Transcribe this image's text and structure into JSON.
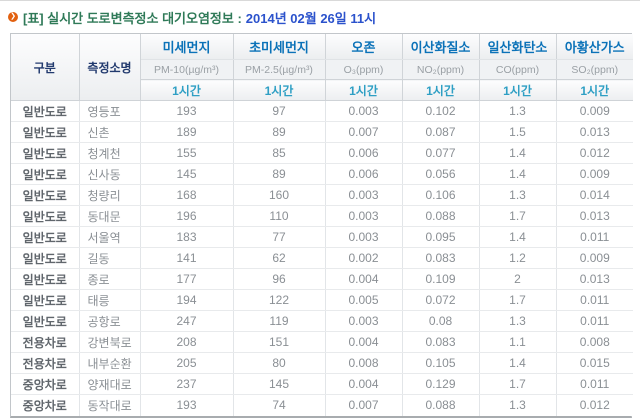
{
  "title": {
    "prefix": "[표] 실시간 도로변측정소 대기오염정보 :",
    "date": "2014년 02월 26일 11시"
  },
  "colors": {
    "title_green": "#2f7a58",
    "date_blue": "#2b52cc",
    "pollutant_blue": "#0b72b8",
    "hour_teal": "#2e9fc4",
    "group_navy": "#223a6e",
    "bullet_orange": "#e2600f"
  },
  "icons": {
    "bullet": "❯"
  },
  "table": {
    "col_group_label": "구분",
    "station_label": "측정소명",
    "hour_label": "1시간",
    "pollutants": [
      {
        "name": "미세먼지",
        "unit": "PM-10(µg/m³)"
      },
      {
        "name": "초미세먼지",
        "unit": "PM-2.5(µg/m³)"
      },
      {
        "name": "오존",
        "unit": "O₃(ppm)"
      },
      {
        "name": "이산화질소",
        "unit": "NO₂(ppm)"
      },
      {
        "name": "일산화탄소",
        "unit": "CO(ppm)"
      },
      {
        "name": "아황산가스",
        "unit": "SO₂(ppm)"
      }
    ],
    "rows": [
      {
        "category": "일반도로",
        "station": "영등포",
        "values": [
          "193",
          "97",
          "0.003",
          "0.102",
          "1.3",
          "0.009"
        ]
      },
      {
        "category": "일반도로",
        "station": "신촌",
        "values": [
          "189",
          "89",
          "0.007",
          "0.087",
          "1.5",
          "0.013"
        ]
      },
      {
        "category": "일반도로",
        "station": "청계천",
        "values": [
          "155",
          "85",
          "0.006",
          "0.077",
          "1.4",
          "0.012"
        ]
      },
      {
        "category": "일반도로",
        "station": "신사동",
        "values": [
          "145",
          "89",
          "0.006",
          "0.056",
          "1.4",
          "0.009"
        ]
      },
      {
        "category": "일반도로",
        "station": "청량리",
        "values": [
          "168",
          "160",
          "0.003",
          "0.106",
          "1.3",
          "0.014"
        ]
      },
      {
        "category": "일반도로",
        "station": "동대문",
        "values": [
          "196",
          "110",
          "0.003",
          "0.088",
          "1.7",
          "0.013"
        ]
      },
      {
        "category": "일반도로",
        "station": "서울역",
        "values": [
          "183",
          "77",
          "0.003",
          "0.095",
          "1.4",
          "0.011"
        ]
      },
      {
        "category": "일반도로",
        "station": "길동",
        "values": [
          "141",
          "62",
          "0.002",
          "0.083",
          "1.2",
          "0.009"
        ]
      },
      {
        "category": "일반도로",
        "station": "종로",
        "values": [
          "177",
          "96",
          "0.004",
          "0.109",
          "2",
          "0.013"
        ]
      },
      {
        "category": "일반도로",
        "station": "태릉",
        "values": [
          "194",
          "122",
          "0.005",
          "0.072",
          "1.7",
          "0.011"
        ]
      },
      {
        "category": "일반도로",
        "station": "공항로",
        "values": [
          "247",
          "119",
          "0.003",
          "0.08",
          "1.3",
          "0.011"
        ]
      },
      {
        "category": "전용차로",
        "station": "강변북로",
        "values": [
          "208",
          "151",
          "0.004",
          "0.083",
          "1.1",
          "0.008"
        ]
      },
      {
        "category": "전용차로",
        "station": "내부순환",
        "values": [
          "205",
          "80",
          "0.008",
          "0.105",
          "1.4",
          "0.015"
        ]
      },
      {
        "category": "중앙차로",
        "station": "양재대로",
        "values": [
          "237",
          "145",
          "0.004",
          "0.129",
          "1.7",
          "0.011"
        ]
      },
      {
        "category": "중앙차로",
        "station": "동작대로",
        "values": [
          "193",
          "74",
          "0.007",
          "0.088",
          "1.3",
          "0.012"
        ]
      }
    ]
  }
}
